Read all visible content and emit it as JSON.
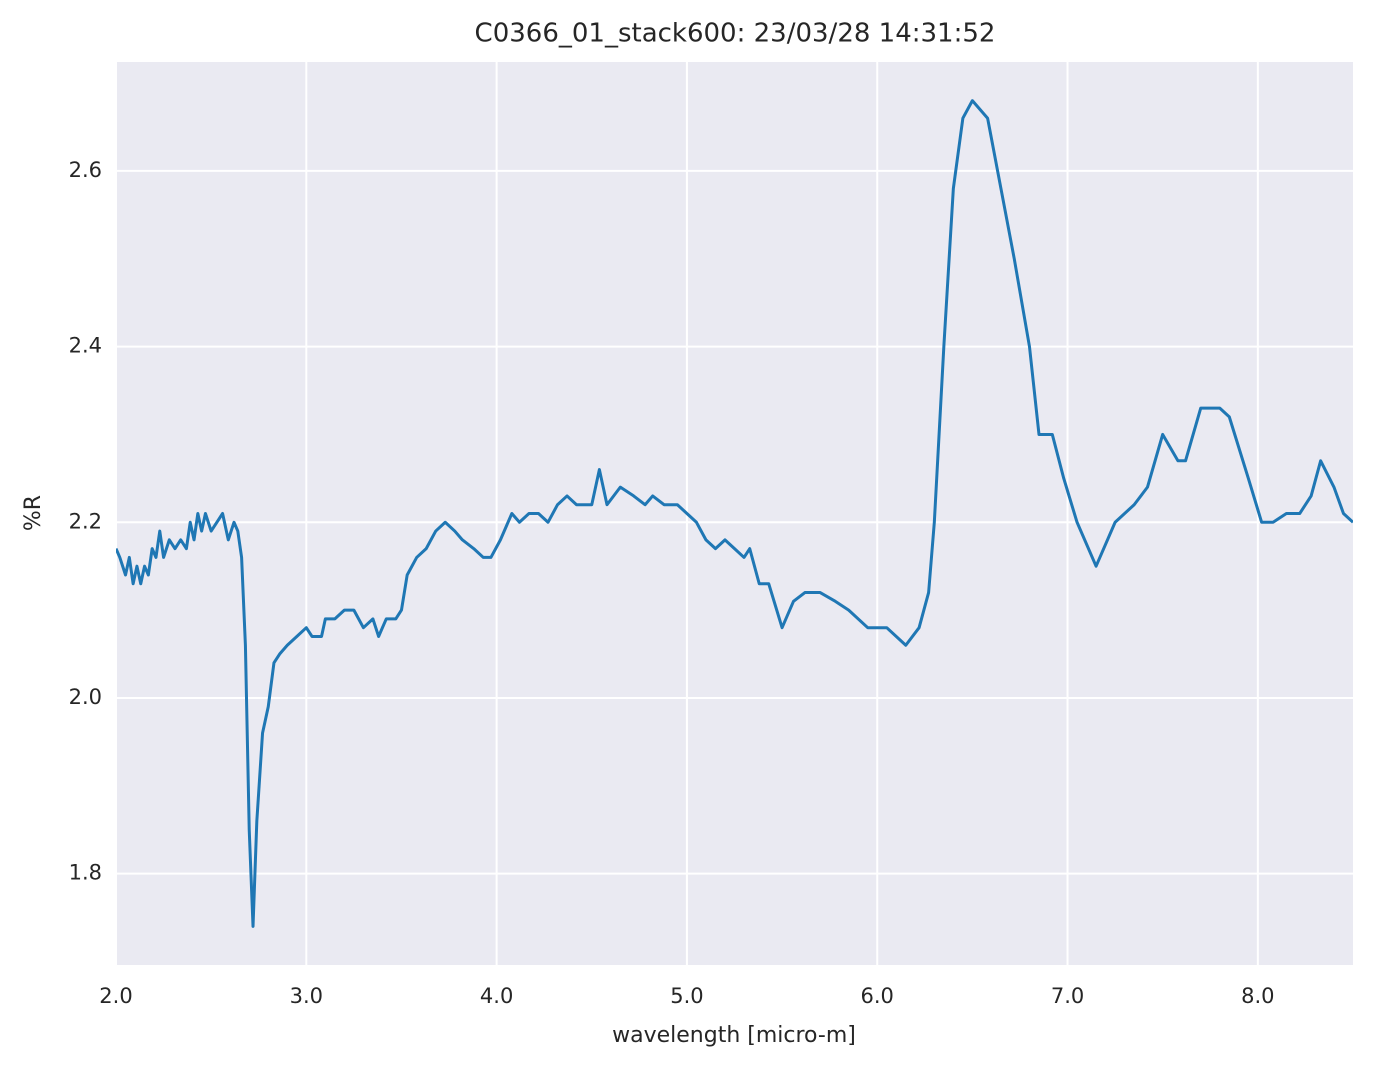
{
  "chart_data": {
    "type": "line",
    "title": "C0366_01_stack600:  23/03/28 14:31:52",
    "xlabel": "wavelength [micro-m]",
    "ylabel": "%R",
    "color": "#1f77b4",
    "grid": true,
    "xlim": [
      2.0,
      8.5
    ],
    "ylim": [
      1.696,
      2.724
    ],
    "xticks": [
      {
        "value": 2,
        "label": "2.0"
      },
      {
        "value": 3,
        "label": "3.0"
      },
      {
        "value": 4,
        "label": "4.0"
      },
      {
        "value": 5,
        "label": "5.0"
      },
      {
        "value": 6,
        "label": "6.0"
      },
      {
        "value": 7,
        "label": "7.0"
      },
      {
        "value": 8,
        "label": "8.0"
      }
    ],
    "yticks": [
      1.8,
      {
        "value": 2,
        "label": "2.0"
      },
      2.2,
      2.4,
      2.6
    ],
    "x": [
      2.0,
      2.02,
      2.05,
      2.07,
      2.09,
      2.11,
      2.13,
      2.15,
      2.17,
      2.19,
      2.21,
      2.23,
      2.25,
      2.28,
      2.31,
      2.34,
      2.37,
      2.39,
      2.41,
      2.43,
      2.45,
      2.47,
      2.5,
      2.53,
      2.56,
      2.59,
      2.62,
      2.64,
      2.66,
      2.68,
      2.7,
      2.72,
      2.74,
      2.77,
      2.8,
      2.83,
      2.86,
      2.9,
      2.95,
      3.0,
      3.03,
      3.08,
      3.1,
      3.15,
      3.2,
      3.25,
      3.3,
      3.35,
      3.38,
      3.42,
      3.47,
      3.5,
      3.53,
      3.58,
      3.63,
      3.68,
      3.73,
      3.78,
      3.82,
      3.88,
      3.93,
      3.97,
      4.02,
      4.08,
      4.12,
      4.17,
      4.22,
      4.27,
      4.32,
      4.37,
      4.42,
      4.5,
      4.54,
      4.58,
      4.65,
      4.72,
      4.78,
      4.82,
      4.88,
      4.95,
      5.0,
      5.05,
      5.1,
      5.15,
      5.2,
      5.25,
      5.3,
      5.33,
      5.38,
      5.43,
      5.5,
      5.56,
      5.62,
      5.7,
      5.78,
      5.85,
      5.95,
      6.05,
      6.15,
      6.22,
      6.27,
      6.3,
      6.35,
      6.4,
      6.45,
      6.5,
      6.58,
      6.65,
      6.72,
      6.8,
      6.85,
      6.92,
      6.98,
      7.05,
      7.15,
      7.25,
      7.35,
      7.42,
      7.5,
      7.58,
      7.62,
      7.7,
      7.8,
      7.85,
      7.95,
      8.02,
      8.08,
      8.15,
      8.22,
      8.28,
      8.33,
      8.4,
      8.45,
      8.5
    ],
    "values": [
      2.17,
      2.16,
      2.14,
      2.16,
      2.13,
      2.15,
      2.13,
      2.15,
      2.14,
      2.17,
      2.16,
      2.19,
      2.16,
      2.18,
      2.17,
      2.18,
      2.17,
      2.2,
      2.18,
      2.21,
      2.19,
      2.21,
      2.19,
      2.2,
      2.21,
      2.18,
      2.2,
      2.19,
      2.16,
      2.06,
      1.85,
      1.74,
      1.86,
      1.96,
      1.99,
      2.04,
      2.05,
      2.06,
      2.07,
      2.08,
      2.07,
      2.07,
      2.09,
      2.09,
      2.1,
      2.1,
      2.08,
      2.09,
      2.07,
      2.09,
      2.09,
      2.1,
      2.14,
      2.16,
      2.17,
      2.19,
      2.2,
      2.19,
      2.18,
      2.17,
      2.16,
      2.16,
      2.18,
      2.21,
      2.2,
      2.21,
      2.21,
      2.2,
      2.22,
      2.23,
      2.22,
      2.22,
      2.26,
      2.22,
      2.24,
      2.23,
      2.22,
      2.23,
      2.22,
      2.22,
      2.21,
      2.2,
      2.18,
      2.17,
      2.18,
      2.17,
      2.16,
      2.17,
      2.13,
      2.13,
      2.08,
      2.11,
      2.12,
      2.12,
      2.11,
      2.1,
      2.08,
      2.08,
      2.06,
      2.08,
      2.12,
      2.2,
      2.4,
      2.58,
      2.66,
      2.68,
      2.66,
      2.58,
      2.5,
      2.4,
      2.3,
      2.3,
      2.25,
      2.2,
      2.15,
      2.2,
      2.22,
      2.24,
      2.3,
      2.27,
      2.27,
      2.33,
      2.33,
      2.32,
      2.25,
      2.2,
      2.2,
      2.21,
      2.21,
      2.23,
      2.27,
      2.24,
      2.21,
      2.2
    ]
  }
}
